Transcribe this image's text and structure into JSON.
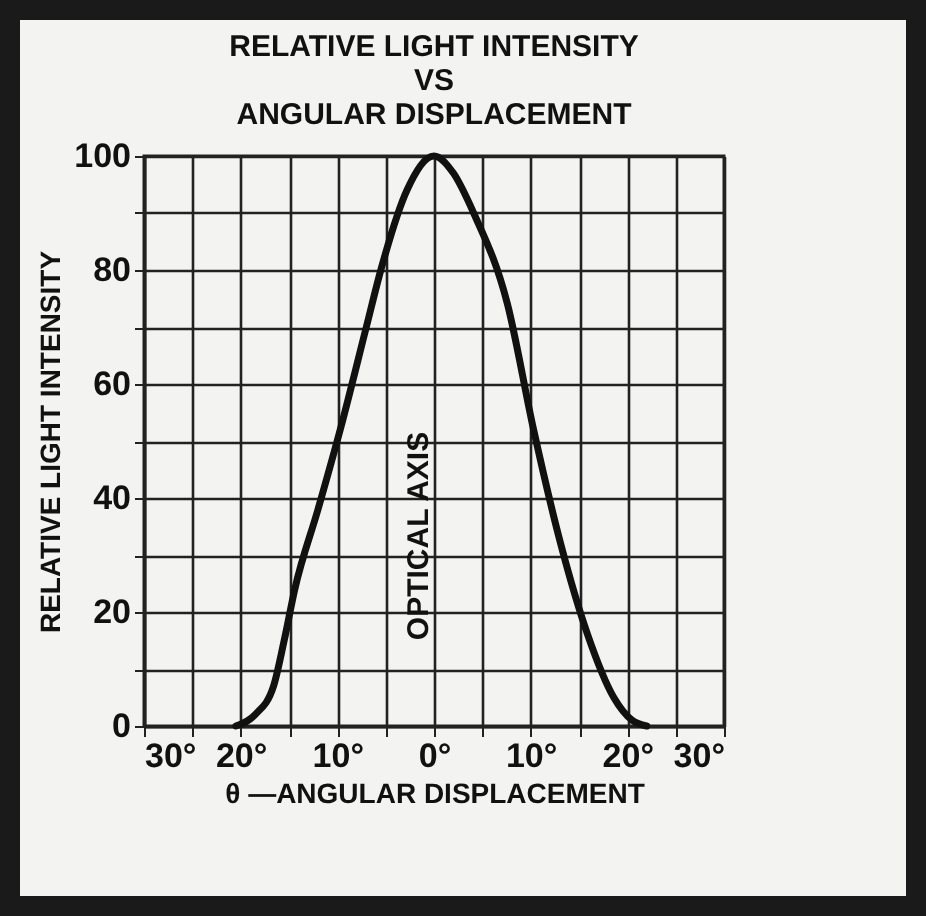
{
  "chart_data": {
    "type": "line",
    "title": "RELATIVE LIGHT INTENSITY\nVS\nANGULAR DISPLACEMENT",
    "xlabel": "θ —ANGULAR DISPLACEMENT",
    "ylabel": "RELATIVE LIGHT INTENSITY",
    "x": [
      -20.5,
      -18.5,
      -16.6,
      -15.5,
      -14.4,
      -12,
      -9.7,
      -7,
      -5.5,
      -2.8,
      0,
      2,
      4.1,
      7.6,
      10.3,
      13.1,
      15.9,
      18.6,
      20.5,
      22
    ],
    "series": [
      {
        "color": "#111111",
        "values": [
          0,
          2,
          7,
          15,
          24,
          38,
          52,
          70,
          80,
          94,
          100,
          97,
          90,
          74,
          52,
          32,
          16,
          5,
          1,
          0
        ]
      }
    ],
    "xlim": [
      -30,
      30
    ],
    "xticks": [
      {
        "value": -30,
        "label": "30°"
      },
      {
        "value": -25,
        "label": null
      },
      {
        "value": -20,
        "label": "20°"
      },
      {
        "value": -15,
        "label": null
      },
      {
        "value": -10,
        "label": "10°"
      },
      {
        "value": -5,
        "label": null
      },
      {
        "value": 0,
        "label": "0°"
      },
      {
        "value": 5,
        "label": null
      },
      {
        "value": 10,
        "label": "10°"
      },
      {
        "value": 15,
        "label": null
      },
      {
        "value": 20,
        "label": "20°"
      },
      {
        "value": 25,
        "label": null
      },
      {
        "value": 30,
        "label": "30°"
      }
    ],
    "ylim": [
      0,
      100
    ],
    "yticks": [
      0,
      {
        "value": 10,
        "label": null
      },
      20,
      {
        "value": 30,
        "label": null
      },
      40,
      {
        "value": 50,
        "label": null
      },
      60,
      {
        "value": 70,
        "label": null
      },
      80,
      {
        "value": 90,
        "label": null
      },
      100
    ],
    "grid": true,
    "line_style": "solid",
    "marker": "none",
    "annotations": [
      "OPTICAL AXIS"
    ]
  }
}
